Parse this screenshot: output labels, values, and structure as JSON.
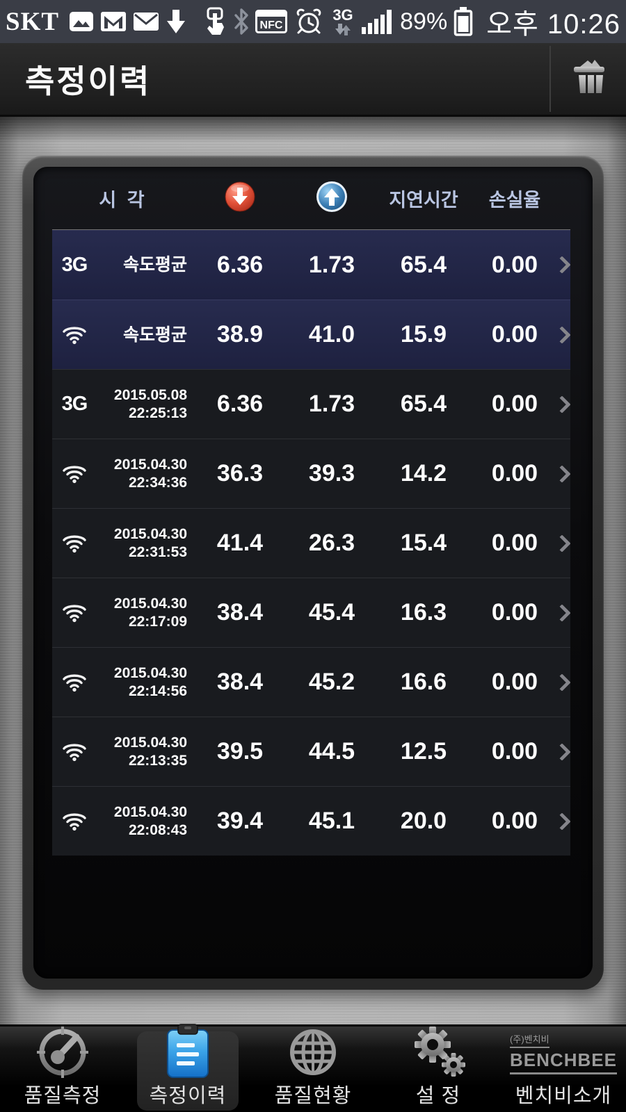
{
  "status_bar": {
    "carrier": "SKT",
    "nfc_label": "NFC",
    "network_type": "3G",
    "battery_percent": "89%",
    "time": "오후 10:26"
  },
  "title_bar": {
    "title": "측정이력"
  },
  "table": {
    "headers": {
      "time": "시 각",
      "delay": "지연시간",
      "loss": "손실율"
    },
    "rows": [
      {
        "network": "3G",
        "line1": "속도평균",
        "line2": "",
        "down": "6.36",
        "up": "1.73",
        "delay": "65.4",
        "loss": "0.00",
        "highlight": true
      },
      {
        "network": "wifi",
        "line1": "속도평균",
        "line2": "",
        "down": "38.9",
        "up": "41.0",
        "delay": "15.9",
        "loss": "0.00",
        "highlight": true
      },
      {
        "network": "3G",
        "line1": "2015.05.08",
        "line2": "22:25:13",
        "down": "6.36",
        "up": "1.73",
        "delay": "65.4",
        "loss": "0.00",
        "highlight": false
      },
      {
        "network": "wifi",
        "line1": "2015.04.30",
        "line2": "22:34:36",
        "down": "36.3",
        "up": "39.3",
        "delay": "14.2",
        "loss": "0.00",
        "highlight": false
      },
      {
        "network": "wifi",
        "line1": "2015.04.30",
        "line2": "22:31:53",
        "down": "41.4",
        "up": "26.3",
        "delay": "15.4",
        "loss": "0.00",
        "highlight": false
      },
      {
        "network": "wifi",
        "line1": "2015.04.30",
        "line2": "22:17:09",
        "down": "38.4",
        "up": "45.4",
        "delay": "16.3",
        "loss": "0.00",
        "highlight": false
      },
      {
        "network": "wifi",
        "line1": "2015.04.30",
        "line2": "22:14:56",
        "down": "38.4",
        "up": "45.2",
        "delay": "16.6",
        "loss": "0.00",
        "highlight": false
      },
      {
        "network": "wifi",
        "line1": "2015.04.30",
        "line2": "22:13:35",
        "down": "39.5",
        "up": "44.5",
        "delay": "12.5",
        "loss": "0.00",
        "highlight": false
      },
      {
        "network": "wifi",
        "line1": "2015.04.30",
        "line2": "22:08:43",
        "down": "39.4",
        "up": "45.1",
        "delay": "20.0",
        "loss": "0.00",
        "highlight": false
      }
    ]
  },
  "nav": {
    "tabs": [
      {
        "label": "품질측정",
        "icon": "speedometer-icon",
        "active": false
      },
      {
        "label": "측정이력",
        "icon": "clipboard-icon",
        "active": true
      },
      {
        "label": "품질현황",
        "icon": "globe-icon",
        "active": false
      },
      {
        "label": "설 정",
        "icon": "gears-icon",
        "active": false
      },
      {
        "label": "벤치비소개",
        "icon": "benchbee-logo",
        "active": false,
        "logo_top": "(주)벤치비",
        "logo_text": "BENCHBEE"
      }
    ]
  },
  "colors": {
    "download_accent": "#d94a31",
    "upload_accent": "#2e7cba",
    "highlight_row_bg": "#232642",
    "header_text": "#b9c5e2",
    "statusbar_bg": "#3a3d46"
  }
}
